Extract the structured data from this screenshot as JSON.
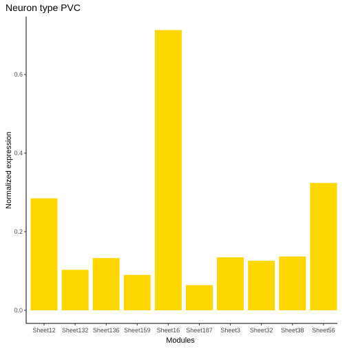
{
  "chart_data": {
    "type": "bar",
    "title": "Neuron type PVC",
    "xlabel": "Modules",
    "ylabel": "Normalized expression",
    "categories": [
      "Sheet12",
      "Sheet132",
      "Sheet136",
      "Sheet159",
      "Sheet16",
      "Sheet187",
      "Sheet3",
      "Sheet32",
      "Sheet38",
      "Sheet56"
    ],
    "values": [
      0.285,
      0.103,
      0.133,
      0.09,
      0.713,
      0.064,
      0.135,
      0.126,
      0.137,
      0.324
    ],
    "ylim": [
      0,
      0.75
    ],
    "yticks": [
      0.0,
      0.2,
      0.4,
      0.6
    ],
    "ytick_labels": [
      "0.0",
      "0.2",
      "0.4",
      "0.6"
    ],
    "grid": false,
    "legend": "none",
    "bar_color": "#FFD700"
  }
}
